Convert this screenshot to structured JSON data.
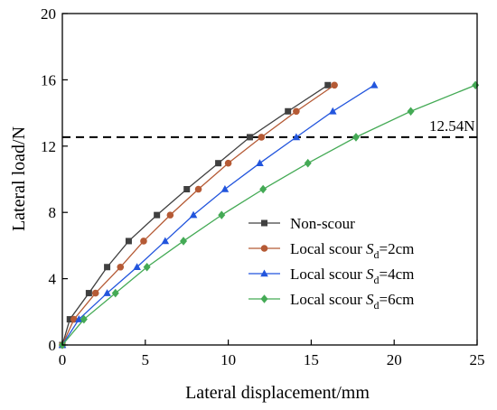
{
  "chart_data": {
    "type": "line",
    "xlabel": "Lateral displacement/mm",
    "ylabel": "Lateral load/N",
    "xlim": [
      0,
      25
    ],
    "ylim": [
      0,
      20
    ],
    "xticks": [
      "0",
      "5",
      "10",
      "15",
      "20",
      "25"
    ],
    "yticks": [
      "0",
      "4",
      "8",
      "12",
      "16",
      "20"
    ],
    "grid": false,
    "legend_position": "lower-right",
    "reference_line": {
      "y": 12.54,
      "label": "12.54N",
      "style": "dashed"
    },
    "series": [
      {
        "name": "Non-scour",
        "name_main": "Non-scour",
        "color": "#404040",
        "marker": "square",
        "x": [
          0,
          0.45,
          1.6,
          2.7,
          4.0,
          5.7,
          7.5,
          9.4,
          11.3,
          13.6,
          16.0
        ],
        "y": [
          0,
          1.55,
          3.13,
          4.7,
          6.27,
          7.84,
          9.4,
          10.97,
          12.54,
          14.1,
          15.68
        ]
      },
      {
        "name": "Local scour Sd=2cm",
        "name_main": "Local scour ",
        "name_symbol": "S",
        "name_sub": "d",
        "name_tail": "=2cm",
        "color": "#b55a35",
        "marker": "circle",
        "x": [
          0,
          0.7,
          2.0,
          3.5,
          4.9,
          6.5,
          8.2,
          10.0,
          12.0,
          14.1,
          16.4
        ],
        "y": [
          0,
          1.55,
          3.13,
          4.7,
          6.27,
          7.84,
          9.4,
          10.97,
          12.54,
          14.1,
          15.68
        ]
      },
      {
        "name": "Local scour Sd=4cm",
        "name_main": "Local scour ",
        "name_symbol": "S",
        "name_sub": "d",
        "name_tail": "=4cm",
        "color": "#2255dd",
        "marker": "triangle",
        "x": [
          0,
          1.0,
          2.7,
          4.5,
          6.2,
          7.9,
          9.8,
          11.9,
          14.1,
          16.3,
          18.8
        ],
        "y": [
          0,
          1.55,
          3.13,
          4.7,
          6.27,
          7.84,
          9.4,
          10.97,
          12.54,
          14.1,
          15.68
        ]
      },
      {
        "name": "Local scour Sd=6cm",
        "name_main": "Local scour ",
        "name_symbol": "S",
        "name_sub": "d",
        "name_tail": "=6cm",
        "color": "#44aa55",
        "marker": "diamond",
        "x": [
          0,
          1.3,
          3.2,
          5.1,
          7.3,
          9.6,
          12.1,
          14.8,
          17.7,
          21.0,
          24.9
        ],
        "y": [
          0,
          1.55,
          3.13,
          4.7,
          6.27,
          7.84,
          9.4,
          10.97,
          12.54,
          14.1,
          15.68
        ]
      }
    ]
  }
}
